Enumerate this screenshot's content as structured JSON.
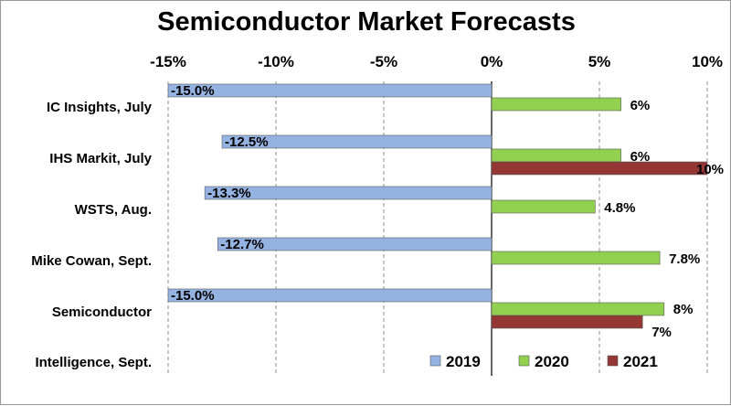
{
  "chart_data": {
    "type": "bar",
    "orientation": "horizontal",
    "title": "Semiconductor Market Forecasts",
    "xlim": [
      -15,
      10
    ],
    "x_ticks": [
      -15,
      -10,
      -5,
      0,
      5,
      10
    ],
    "x_tick_labels": [
      "-15%",
      "-10%",
      "-5%",
      "0%",
      "5%",
      "10%"
    ],
    "x_axis_position": "top",
    "grid": "vertical dashed",
    "categories": [
      "IC Insights, July",
      "IHS Markit, July",
      "WSTS, Aug.",
      "Mike Cowan, Sept.",
      "Semiconductor"
    ],
    "extra_category_label": "Intelligence, Sept.",
    "series": [
      {
        "name": "2019",
        "color": "#95b3e2",
        "values": [
          -15.0,
          -12.5,
          -13.3,
          -12.7,
          -15.0
        ],
        "labels": [
          "-15.0%",
          "-12.5%",
          "-13.3%",
          "-12.7%",
          "-15.0%"
        ]
      },
      {
        "name": "2020",
        "color": "#92d050",
        "values": [
          6,
          6,
          4.8,
          7.8,
          8
        ],
        "labels": [
          "6%",
          "6%",
          "4.8%",
          "7.8%",
          "8%"
        ]
      },
      {
        "name": "2021",
        "color": "#943634",
        "values": [
          null,
          10,
          null,
          null,
          7
        ],
        "labels": [
          null,
          "10%",
          null,
          null,
          "7%"
        ]
      }
    ],
    "legend_position": "bottom-right"
  }
}
